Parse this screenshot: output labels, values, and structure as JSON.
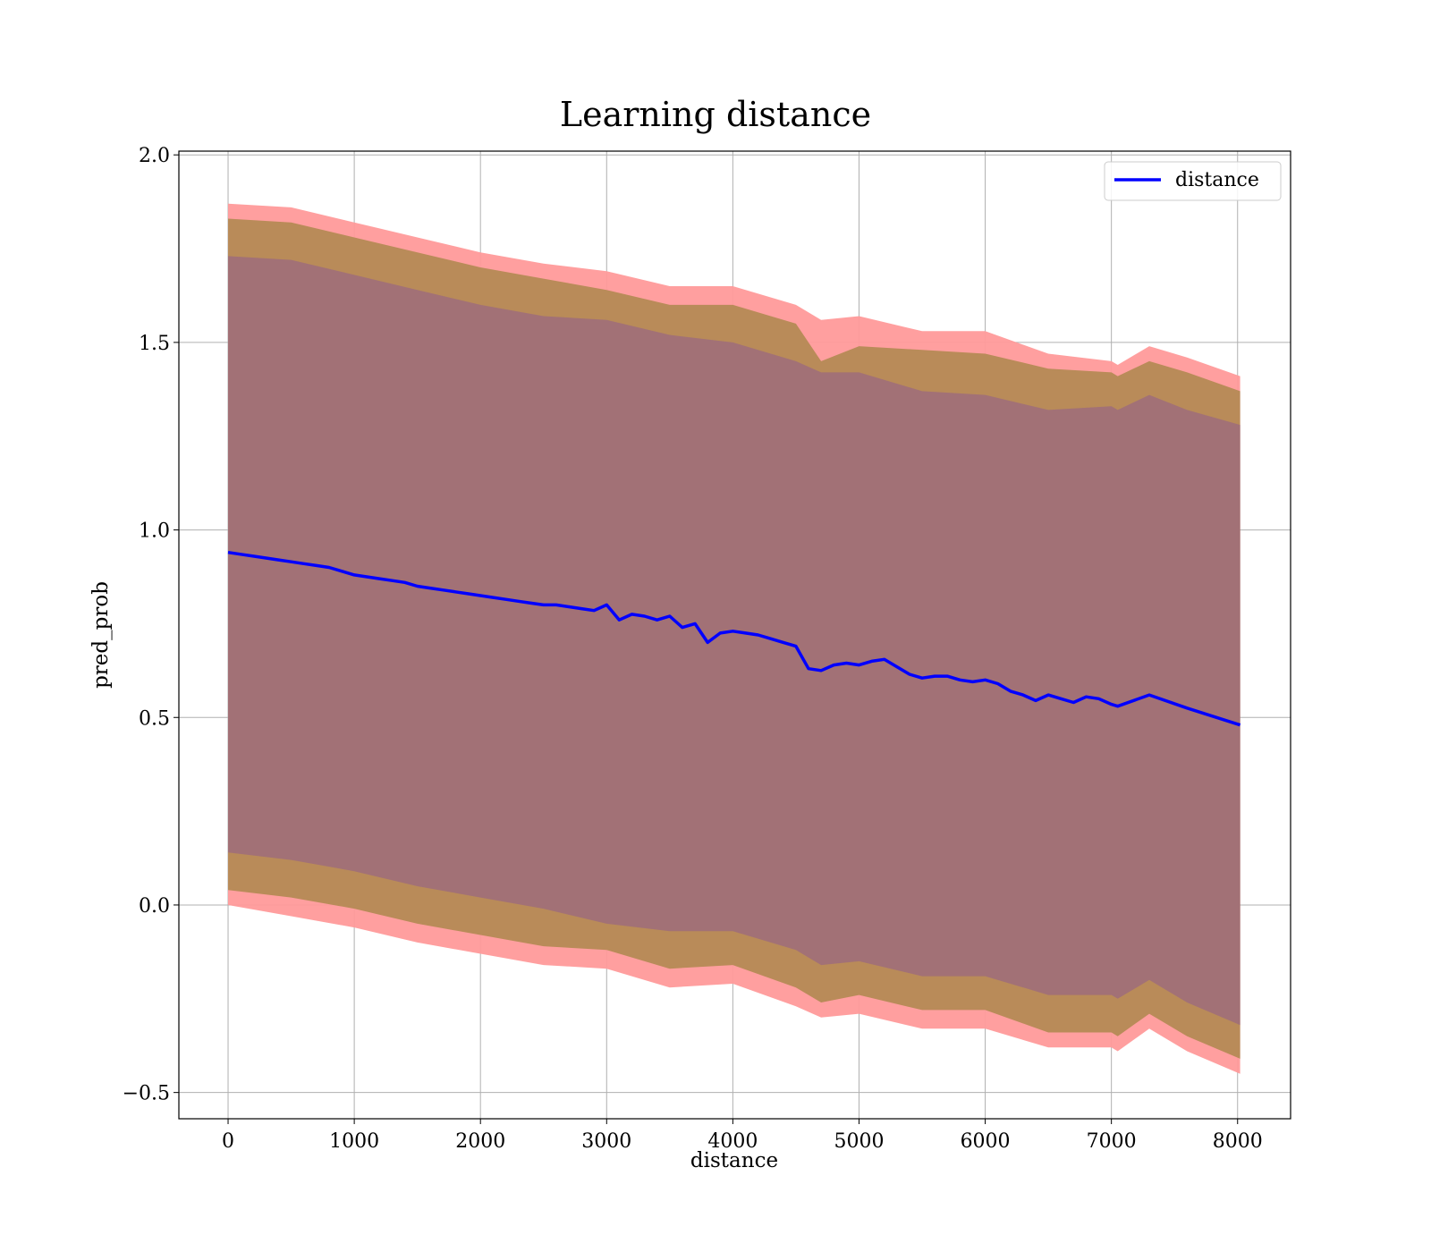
{
  "chart_data": {
    "type": "line",
    "title": "Learning distance",
    "xlabel": "distance",
    "ylabel": "pred_prob",
    "xlim": [
      -390,
      8420
    ],
    "ylim": [
      -0.57,
      2.01
    ],
    "xticks": [
      0,
      1000,
      2000,
      3000,
      4000,
      5000,
      6000,
      7000,
      8000
    ],
    "xtick_labels": [
      "0",
      "1000",
      "2000",
      "3000",
      "4000",
      "5000",
      "6000",
      "7000",
      "8000"
    ],
    "yticks": [
      -0.5,
      0.0,
      0.5,
      1.0,
      1.5,
      2.0
    ],
    "ytick_labels": [
      "−0.5",
      "0.0",
      "0.5",
      "1.0",
      "1.5",
      "2.0"
    ],
    "grid": true,
    "legend": {
      "position": "top-right",
      "entries": [
        "distance"
      ]
    },
    "colors": {
      "line": "#0000ff",
      "band_outer": "#ff9a9a",
      "band_middle": "#b58a55",
      "band_inner": "#a07078"
    },
    "series": [
      {
        "name": "distance",
        "x": [
          0,
          100,
          200,
          300,
          400,
          500,
          600,
          700,
          800,
          900,
          1000,
          1100,
          1200,
          1300,
          1400,
          1500,
          1600,
          1700,
          1800,
          1900,
          2000,
          2100,
          2200,
          2300,
          2400,
          2500,
          2600,
          2700,
          2800,
          2900,
          3000,
          3100,
          3200,
          3300,
          3400,
          3500,
          3600,
          3700,
          3800,
          3900,
          4000,
          4100,
          4200,
          4300,
          4400,
          4500,
          4600,
          4700,
          4800,
          4900,
          5000,
          5100,
          5200,
          5300,
          5400,
          5500,
          5600,
          5700,
          5800,
          5900,
          6000,
          6100,
          6200,
          6300,
          6400,
          6500,
          6600,
          6700,
          6800,
          6900,
          7000,
          7050,
          7300,
          7600,
          8020
        ],
        "values": [
          0.94,
          0.935,
          0.93,
          0.925,
          0.92,
          0.915,
          0.91,
          0.905,
          0.9,
          0.89,
          0.88,
          0.875,
          0.87,
          0.865,
          0.86,
          0.85,
          0.845,
          0.84,
          0.835,
          0.83,
          0.825,
          0.82,
          0.815,
          0.81,
          0.805,
          0.8,
          0.8,
          0.795,
          0.79,
          0.785,
          0.8,
          0.76,
          0.775,
          0.77,
          0.76,
          0.77,
          0.74,
          0.75,
          0.7,
          0.725,
          0.73,
          0.725,
          0.72,
          0.71,
          0.7,
          0.69,
          0.63,
          0.625,
          0.64,
          0.645,
          0.64,
          0.65,
          0.655,
          0.635,
          0.615,
          0.605,
          0.61,
          0.61,
          0.6,
          0.595,
          0.6,
          0.59,
          0.57,
          0.56,
          0.545,
          0.56,
          0.55,
          0.54,
          0.555,
          0.55,
          0.535,
          0.53,
          0.56,
          0.525,
          0.48
        ]
      }
    ],
    "bands": [
      {
        "x": [
          0,
          500,
          1000,
          1500,
          2000,
          2500,
          3000,
          3500,
          4000,
          4500,
          4700,
          5000,
          5500,
          6000,
          6500,
          7000,
          7050,
          7300,
          7600,
          8020
        ],
        "upper": [
          1.87,
          1.86,
          1.82,
          1.78,
          1.74,
          1.71,
          1.69,
          1.65,
          1.65,
          1.6,
          1.56,
          1.57,
          1.53,
          1.53,
          1.47,
          1.45,
          1.44,
          1.49,
          1.46,
          1.41
        ],
        "lower": [
          0.0,
          -0.03,
          -0.06,
          -0.1,
          -0.13,
          -0.16,
          -0.17,
          -0.22,
          -0.21,
          -0.27,
          -0.3,
          -0.29,
          -0.33,
          -0.33,
          -0.38,
          -0.38,
          -0.39,
          -0.33,
          -0.39,
          -0.45
        ]
      },
      {
        "x": [
          0,
          500,
          1000,
          1500,
          2000,
          2500,
          3000,
          3500,
          4000,
          4500,
          4700,
          5000,
          5500,
          6000,
          6500,
          7000,
          7050,
          7300,
          7600,
          8020
        ],
        "upper": [
          1.83,
          1.82,
          1.78,
          1.74,
          1.7,
          1.67,
          1.64,
          1.6,
          1.6,
          1.55,
          1.45,
          1.49,
          1.48,
          1.47,
          1.43,
          1.42,
          1.41,
          1.45,
          1.42,
          1.37
        ],
        "lower": [
          0.04,
          0.02,
          -0.01,
          -0.05,
          -0.08,
          -0.11,
          -0.12,
          -0.17,
          -0.16,
          -0.22,
          -0.26,
          -0.24,
          -0.28,
          -0.28,
          -0.34,
          -0.34,
          -0.35,
          -0.29,
          -0.35,
          -0.41
        ]
      },
      {
        "x": [
          0,
          500,
          1000,
          1500,
          2000,
          2500,
          3000,
          3500,
          4000,
          4500,
          4700,
          5000,
          5500,
          6000,
          6500,
          7000,
          7050,
          7300,
          7600,
          8020
        ],
        "upper": [
          1.73,
          1.72,
          1.68,
          1.64,
          1.6,
          1.57,
          1.56,
          1.52,
          1.5,
          1.45,
          1.42,
          1.42,
          1.37,
          1.36,
          1.32,
          1.33,
          1.32,
          1.36,
          1.32,
          1.28
        ],
        "lower": [
          0.14,
          0.12,
          0.09,
          0.05,
          0.02,
          -0.01,
          -0.05,
          -0.07,
          -0.07,
          -0.12,
          -0.16,
          -0.15,
          -0.19,
          -0.19,
          -0.24,
          -0.24,
          -0.25,
          -0.2,
          -0.26,
          -0.32
        ]
      }
    ]
  }
}
